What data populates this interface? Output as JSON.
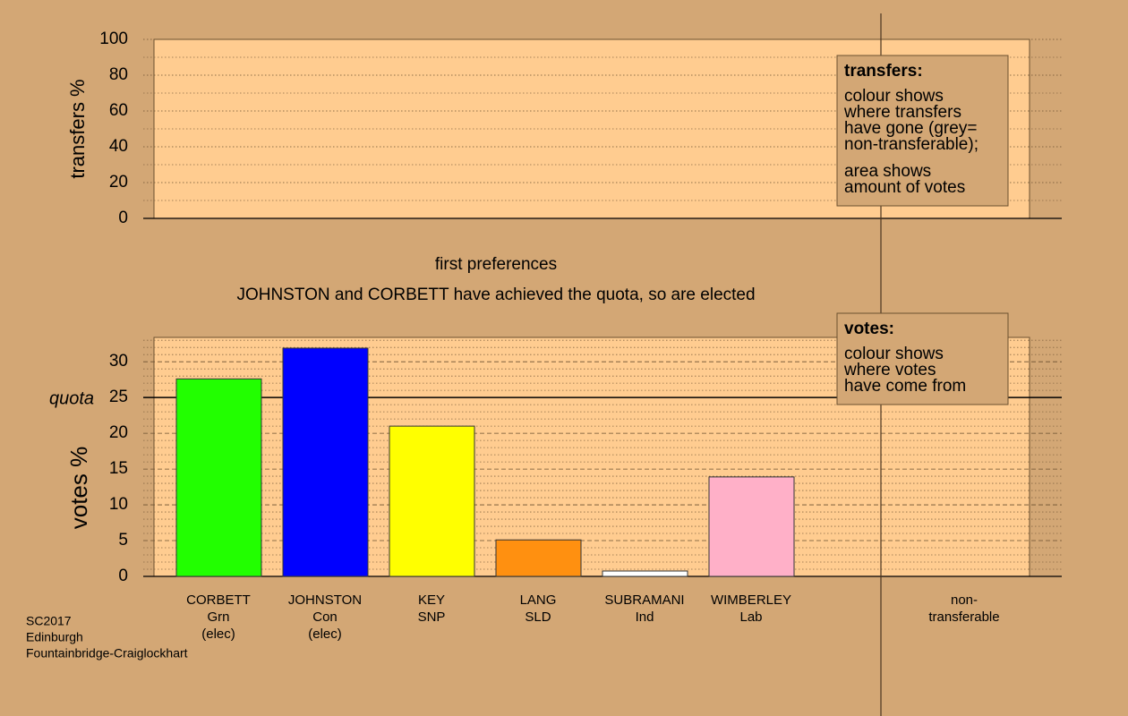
{
  "chart_data": [
    {
      "type": "bar",
      "y_label": "transfers %",
      "ylim": [
        0,
        100
      ],
      "yticks": [
        0,
        20,
        40,
        60,
        80,
        100
      ],
      "minor_yticks": [
        10,
        30,
        50,
        70,
        90
      ],
      "grid": true,
      "legend": {
        "title": "transfers:",
        "lines": [
          [
            "colour shows",
            "where transfers",
            "have gone (grey=",
            "non-transferable);"
          ],
          [
            "area shows",
            "amount of votes"
          ]
        ]
      }
    },
    {
      "type": "bar",
      "title": "first preferences",
      "subtitle": "JOHNSTON and CORBETT have achieved the quota, so are elected",
      "y_label": "votes %",
      "ylim": [
        0,
        33.4
      ],
      "yticks": [
        0,
        5,
        10,
        15,
        20,
        25,
        30
      ],
      "minor_yticks": [
        1,
        2,
        3,
        4,
        6,
        7,
        8,
        9,
        11,
        12,
        13,
        14,
        16,
        17,
        18,
        19,
        21,
        22,
        23,
        24,
        26,
        27,
        28,
        29,
        31,
        32,
        33
      ],
      "grid": true,
      "quota": 25,
      "quota_label": "quota",
      "categories": [
        [
          "CORBETT",
          "Grn",
          "(elec)"
        ],
        [
          "JOHNSTON",
          "Con",
          "(elec)"
        ],
        [
          "KEY",
          "SNP"
        ],
        [
          "LANG",
          "SLD"
        ],
        [
          "SUBRAMANI",
          "Ind"
        ],
        [
          "WIMBERLEY",
          "Lab"
        ],
        [
          "non-",
          "transferable"
        ]
      ],
      "values": [
        27.6,
        31.9,
        21.0,
        5.1,
        0.75,
        13.9,
        null
      ],
      "colors": [
        "#22ff00",
        "#0000ff",
        "#ffff00",
        "#ff9010",
        "#ffffff",
        "#ffb0c8",
        null
      ],
      "legend": {
        "title": "votes:",
        "lines": [
          [
            "colour shows",
            "where votes",
            "have come from"
          ]
        ]
      }
    }
  ],
  "footer": [
    "SC2017",
    "Edinburgh",
    "Fountainbridge-Craiglockhart"
  ]
}
